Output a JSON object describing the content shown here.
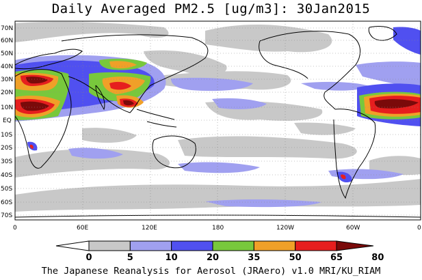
{
  "title": "Daily Averaged PM2.5 [ug/m3]: 30Jan2015",
  "footer": "The Japanese Reanalysis for Aerosol (JRAero) v1.0 MRI/KU_RIAM",
  "lat_labels": [
    "70N",
    "60N",
    "50N",
    "40N",
    "30N",
    "20N",
    "10N",
    "EQ",
    "10S",
    "20S",
    "30S",
    "40S",
    "50S",
    "60S",
    "70S"
  ],
  "lon_labels": [
    "0",
    "60E",
    "120E",
    "180",
    "120W",
    "60W",
    "0"
  ],
  "colorbar": {
    "levels": [
      "0",
      "5",
      "10",
      "20",
      "35",
      "50",
      "65",
      "80"
    ],
    "colors": [
      "#ffffff",
      "#c8c8c8",
      "#a0a0f0",
      "#5050f0",
      "#78c83c",
      "#f0a028",
      "#e61e1e",
      "#7a0a0a"
    ]
  },
  "palette": {
    "low": "#c8c8c8",
    "mid": "#a0a0f0",
    "moderate": "#5050f0",
    "elevated": "#78c83c",
    "high": "#f0a028",
    "veryhigh": "#e61e1e",
    "extreme": "#7a0a0a"
  }
}
